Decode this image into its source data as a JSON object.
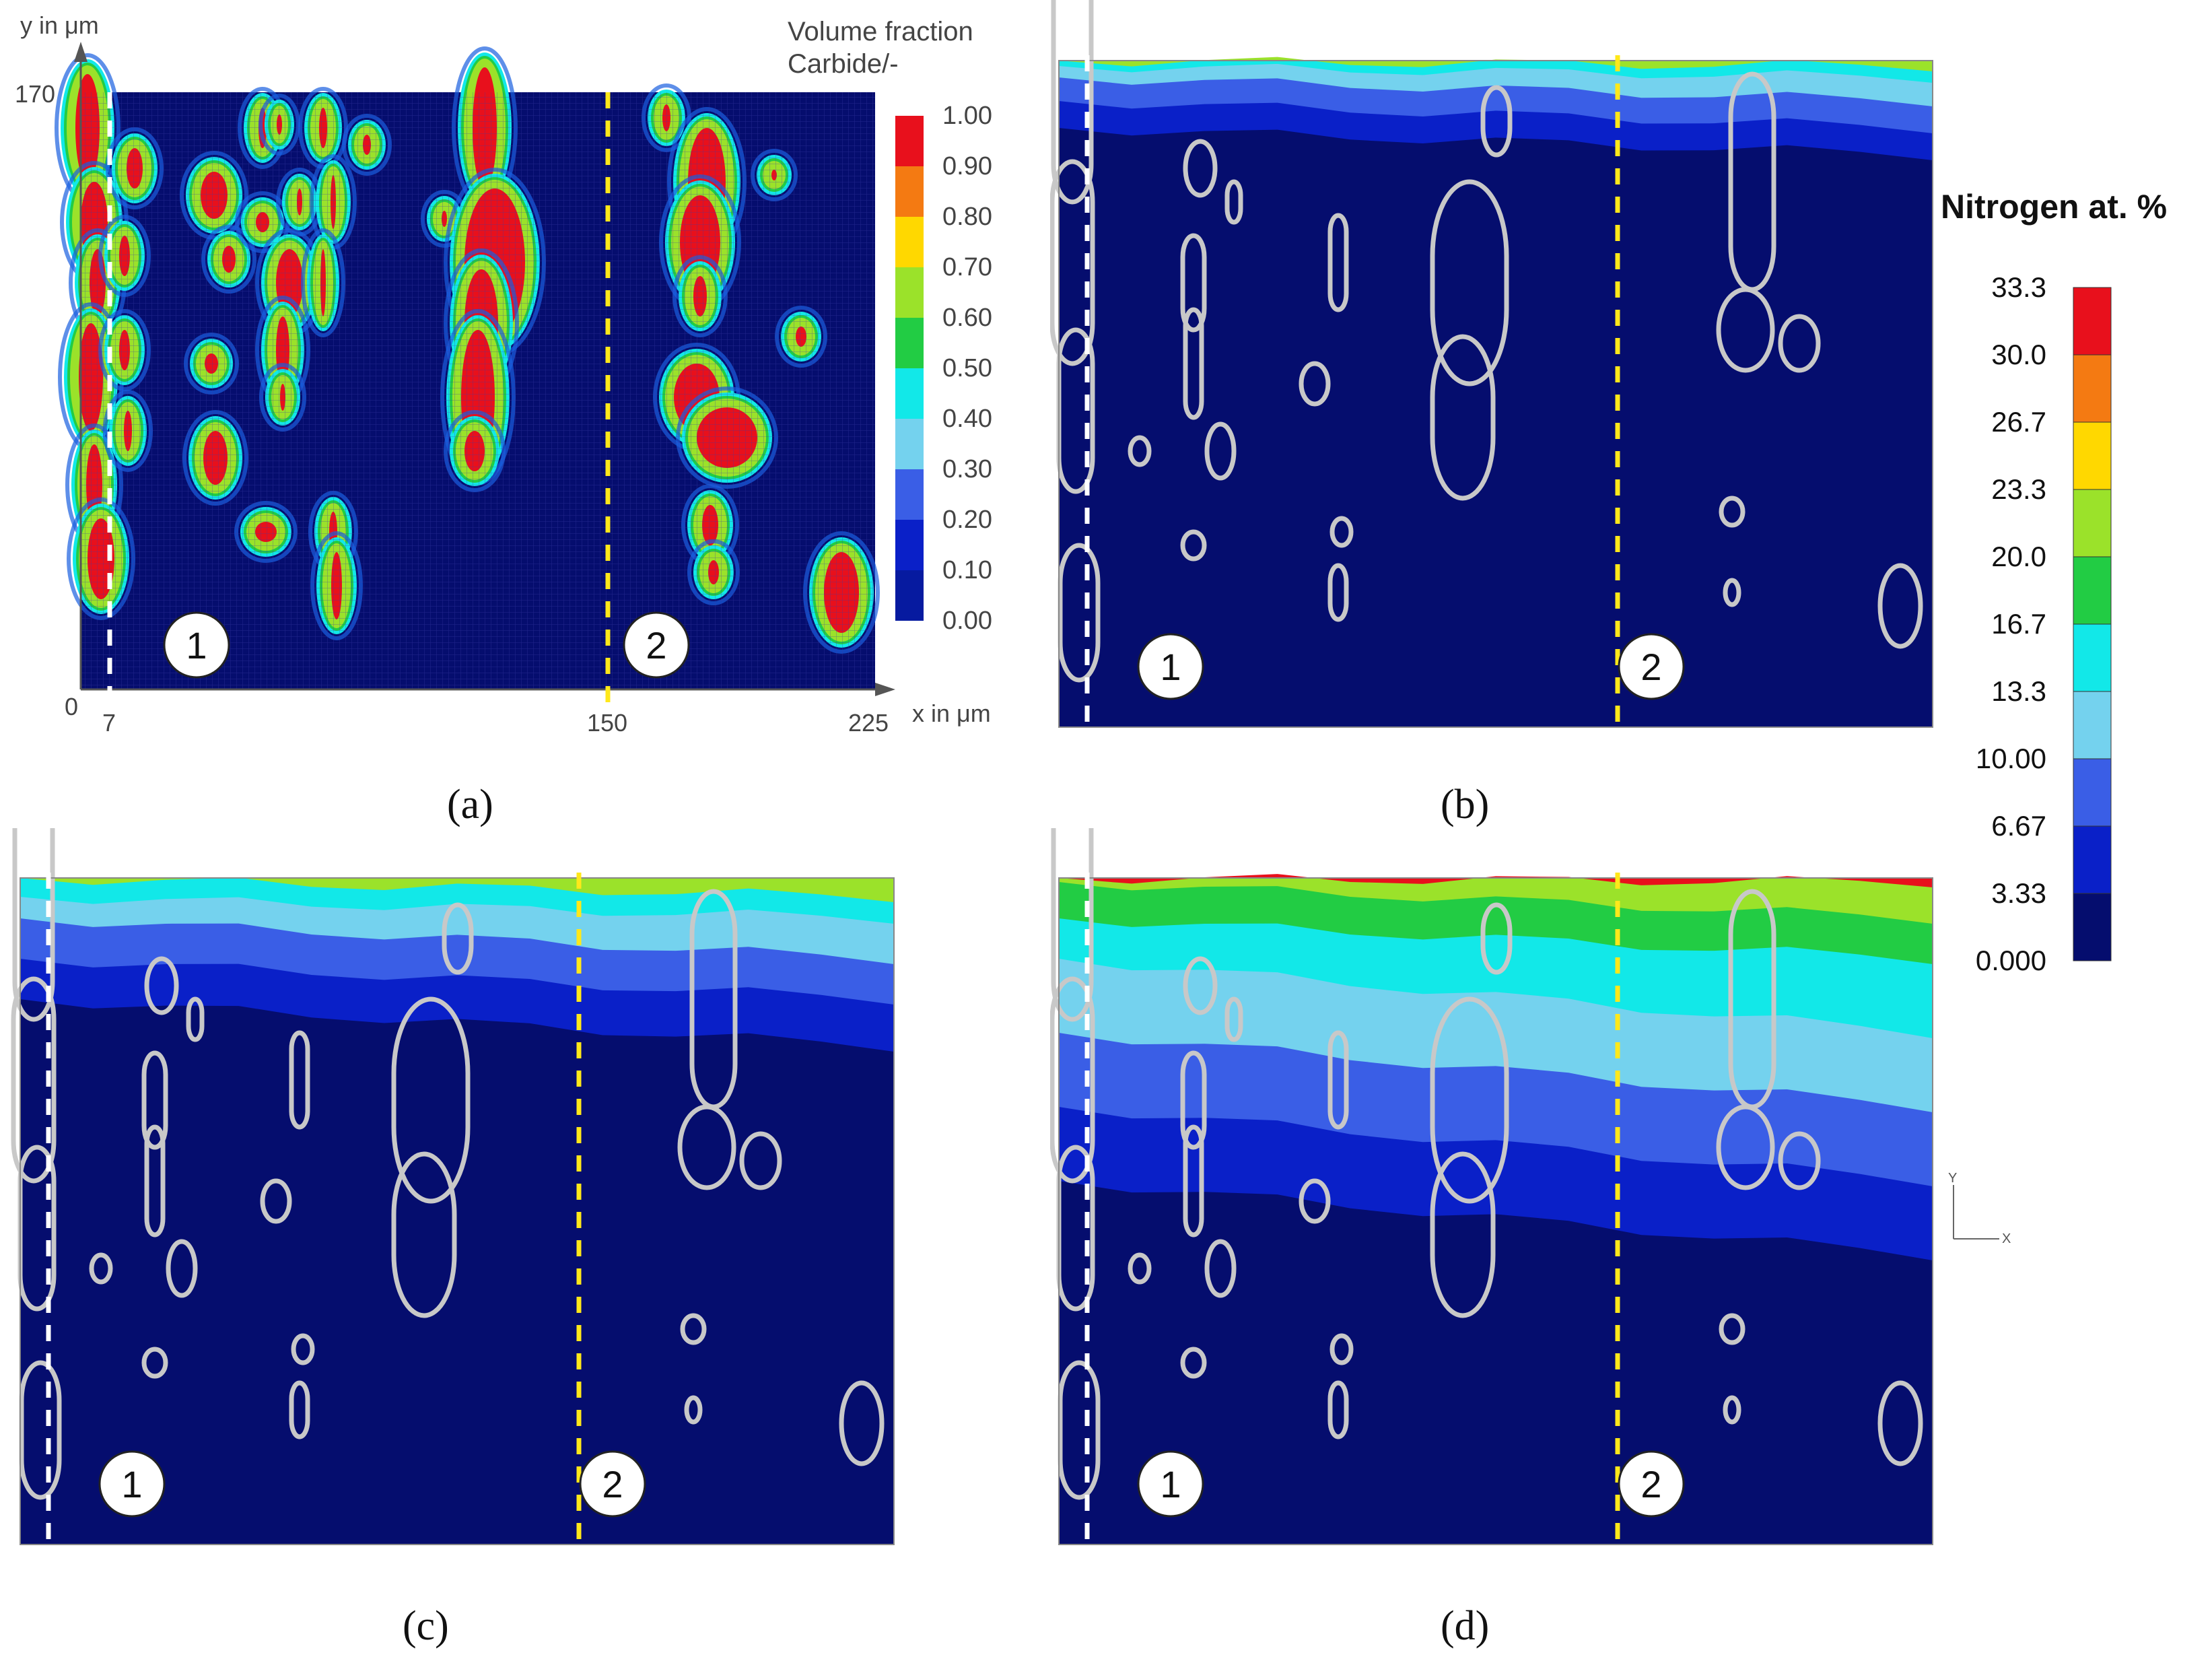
{
  "chart_data": [
    {
      "type": "heatmap",
      "panel": "(a)",
      "title": "Volume fraction Carbide/-",
      "xlabel": "x in μm",
      "ylabel": "y in μm",
      "x_ticks": [
        "0",
        "7",
        "150",
        "225"
      ],
      "y_ticks": [
        "170"
      ],
      "xlim": [
        0,
        225
      ],
      "ylim": [
        0,
        170
      ],
      "colorbar": {
        "labels": [
          "1.00",
          "0.90",
          "0.80",
          "0.70",
          "0.60",
          "0.50",
          "0.40",
          "0.30",
          "0.20",
          "0.10",
          "0.00"
        ],
        "colors": [
          "#e8101c",
          "#f47a12",
          "#ffd800",
          "#9be22a",
          "#22cc44",
          "#12e8e8",
          "#74d2ee",
          "#3a5ee6",
          "#0a20c8",
          "#061aa0",
          "#050d6e"
        ]
      },
      "markers": [
        {
          "label": "1",
          "x": 7,
          "line_color": "#ffffff"
        },
        {
          "label": "2",
          "x": 150,
          "line_color": "#ffe81a"
        }
      ]
    },
    {
      "type": "heatmap",
      "panel": "(b)",
      "markers": [
        {
          "label": "1"
        },
        {
          "label": "2"
        }
      ]
    },
    {
      "type": "heatmap",
      "panel": "(c)",
      "markers": [
        {
          "label": "1"
        },
        {
          "label": "2"
        }
      ]
    },
    {
      "type": "heatmap",
      "panel": "(d)",
      "markers": [
        {
          "label": "1"
        },
        {
          "label": "2"
        }
      ]
    },
    {
      "type": "colorbar",
      "title": "Nitrogen at. %",
      "labels": [
        "33.3",
        "30.0",
        "26.7",
        "23.3",
        "20.0",
        "16.7",
        "13.3",
        "10.00",
        "6.67",
        "3.33",
        "0.000"
      ],
      "colors": [
        "#e8101c",
        "#f47a12",
        "#ffd800",
        "#9be22a",
        "#22cc44",
        "#12e8e8",
        "#74d2ee",
        "#3a5ee6",
        "#0a20c8",
        "#050d6e"
      ]
    }
  ],
  "captions": {
    "a": "(a)",
    "b": "(b)",
    "c": "(c)",
    "d": "(d)"
  },
  "triad": {
    "y": "Y",
    "x": "X"
  },
  "colors": {
    "background_blue": "#050d6e",
    "contour": "#c8c8c8",
    "marker_line_1": "#ffffff",
    "marker_line_2": "#ffe81a"
  }
}
